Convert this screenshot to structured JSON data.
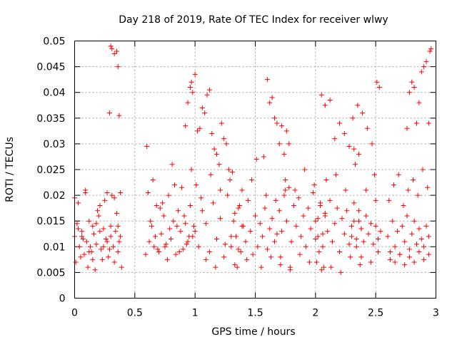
{
  "chart_data": {
    "type": "scatter",
    "title": "Day 218 of 2019, Rate Of TEC Index for receiver wlwy",
    "xlabel": "GPS time / hours",
    "ylabel": "ROTI / TECUs",
    "xlim": [
      0,
      3
    ],
    "ylim": [
      0,
      0.05
    ],
    "grid": true,
    "marker": "+",
    "marker_color": "#ff0000",
    "x_ticks": [
      0,
      0.5,
      1,
      1.5,
      2,
      2.5,
      3
    ],
    "x_tick_labels": [
      "0",
      "0.5",
      "1",
      "1.5",
      "2",
      "2.5",
      "3"
    ],
    "y_ticks": [
      0,
      0.005,
      0.01,
      0.015,
      0.02,
      0.025,
      0.03,
      0.035,
      0.04,
      0.045,
      0.05
    ],
    "y_tick_labels": [
      "0",
      "0.005",
      "0.01",
      "0.015",
      "0.02",
      "0.025",
      "0.03",
      "0.035",
      "0.04",
      "0.045",
      "0.05"
    ],
    "series": [
      {
        "name": "ROTI",
        "x": [
          0.0,
          0.02,
          0.04,
          0.06,
          0.08,
          0.1,
          0.12,
          0.14,
          0.16,
          0.18,
          0.2,
          0.22,
          0.24,
          0.26,
          0.28,
          0.3,
          0.32,
          0.34,
          0.36,
          0.38,
          0.01,
          0.03,
          0.05,
          0.07,
          0.09,
          0.11,
          0.13,
          0.15,
          0.17,
          0.19,
          0.21,
          0.23,
          0.25,
          0.27,
          0.29,
          0.31,
          0.33,
          0.35,
          0.37,
          0.39,
          0.0,
          0.03,
          0.06,
          0.09,
          0.12,
          0.15,
          0.18,
          0.21,
          0.24,
          0.27,
          0.3,
          0.33,
          0.36,
          0.38,
          0.29,
          0.31,
          0.33,
          0.35,
          0.37,
          0.3,
          0.36,
          0.6,
          0.62,
          0.64,
          0.66,
          0.68,
          0.7,
          0.72,
          0.74,
          0.76,
          0.78,
          0.8,
          0.82,
          0.84,
          0.86,
          0.88,
          0.9,
          0.92,
          0.94,
          0.96,
          0.98,
          0.61,
          0.65,
          0.69,
          0.73,
          0.77,
          0.81,
          0.85,
          0.89,
          0.93,
          0.97,
          0.59,
          0.63,
          0.67,
          0.71,
          0.75,
          0.79,
          0.83,
          0.87,
          0.91,
          0.95,
          0.99,
          0.92,
          0.94,
          0.96,
          0.97,
          0.98,
          1.0,
          1.02,
          1.04,
          1.06,
          1.08,
          1.1,
          1.12,
          1.14,
          1.16,
          1.18,
          1.2,
          1.22,
          1.24,
          1.26,
          1.28,
          1.0,
          1.03,
          1.06,
          1.09,
          1.12,
          1.15,
          1.18,
          1.21,
          1.24,
          1.27,
          1.3,
          1.33,
          1.36,
          1.39,
          1.01,
          1.05,
          1.09,
          1.13,
          1.17,
          1.21,
          1.25,
          1.29,
          1.33,
          1.37,
          1.3,
          1.32,
          1.34,
          1.36,
          1.38,
          1.4,
          1.42,
          1.44,
          1.46,
          1.48,
          1.5,
          1.52,
          1.54,
          1.56,
          1.58,
          1.6,
          1.62,
          1.64,
          1.66,
          1.68,
          1.31,
          1.35,
          1.39,
          1.43,
          1.47,
          1.51,
          1.55,
          1.59,
          1.63,
          1.67,
          1.71,
          1.75,
          1.79,
          1.57,
          1.6,
          1.62,
          1.64,
          1.66,
          1.68,
          1.7,
          1.72,
          1.74,
          1.76,
          1.78,
          1.7,
          1.72,
          1.74,
          1.76,
          1.78,
          1.8,
          1.82,
          1.84,
          1.86,
          1.88,
          1.9,
          1.92,
          1.94,
          1.96,
          1.98,
          2.0,
          2.02,
          2.04,
          2.06,
          2.08,
          1.71,
          1.75,
          1.79,
          1.83,
          1.87,
          1.91,
          1.95,
          1.99,
          2.03,
          2.07,
          2.0,
          2.02,
          2.04,
          2.06,
          2.08,
          2.1,
          2.12,
          2.14,
          2.16,
          2.18,
          2.2,
          2.22,
          2.24,
          2.26,
          2.28,
          2.3,
          2.32,
          2.34,
          2.36,
          2.38,
          2.01,
          2.05,
          2.09,
          2.13,
          2.17,
          2.21,
          2.25,
          2.29,
          2.33,
          2.37,
          2.05,
          2.08,
          2.12,
          2.16,
          2.2,
          2.24,
          2.28,
          2.32,
          2.36,
          2.3,
          2.32,
          2.34,
          2.36,
          2.38,
          2.4,
          2.42,
          2.44,
          2.46,
          2.48,
          2.5,
          2.52,
          2.54,
          2.31,
          2.35,
          2.39,
          2.43,
          2.47,
          2.51,
          2.53,
          2.38,
          2.42,
          2.46,
          2.49,
          2.5,
          2.52,
          2.6,
          2.62,
          2.64,
          2.66,
          2.68,
          2.7,
          2.72,
          2.74,
          2.76,
          2.78,
          2.8,
          2.82,
          2.84,
          2.86,
          2.88,
          2.9,
          2.92,
          2.94,
          2.61,
          2.65,
          2.69,
          2.73,
          2.77,
          2.81,
          2.85,
          2.89,
          2.93,
          2.62,
          2.66,
          2.7,
          2.74,
          2.78,
          2.82,
          2.86,
          2.9,
          2.94,
          2.76,
          2.78,
          2.8,
          2.82,
          2.84,
          2.86,
          2.88,
          2.9,
          2.92,
          2.94,
          2.95,
          2.96
        ],
        "y": [
          0.012,
          0.0145,
          0.01,
          0.013,
          0.0085,
          0.011,
          0.015,
          0.009,
          0.0125,
          0.0105,
          0.016,
          0.0095,
          0.0135,
          0.0115,
          0.008,
          0.014,
          0.01,
          0.013,
          0.009,
          0.012,
          0.007,
          0.0185,
          0.008,
          0.0115,
          0.0205,
          0.006,
          0.01,
          0.014,
          0.0055,
          0.017,
          0.013,
          0.0075,
          0.019,
          0.011,
          0.0095,
          0.02,
          0.007,
          0.0165,
          0.011,
          0.006,
          0.0195,
          0.0135,
          0.012,
          0.021,
          0.009,
          0.0075,
          0.0145,
          0.018,
          0.01,
          0.0205,
          0.012,
          0.0195,
          0.014,
          0.0205,
          0.036,
          0.0485,
          0.0475,
          0.048,
          0.0355,
          0.049,
          0.045,
          0.0295,
          0.011,
          0.014,
          0.01,
          0.018,
          0.009,
          0.0125,
          0.016,
          0.0105,
          0.02,
          0.0115,
          0.015,
          0.0085,
          0.017,
          0.013,
          0.0095,
          0.0145,
          0.011,
          0.018,
          0.012,
          0.0205,
          0.023,
          0.0095,
          0.0185,
          0.0075,
          0.026,
          0.014,
          0.0215,
          0.0105,
          0.025,
          0.0085,
          0.015,
          0.012,
          0.0175,
          0.01,
          0.0135,
          0.022,
          0.009,
          0.016,
          0.012,
          0.014,
          0.0335,
          0.038,
          0.041,
          0.042,
          0.04,
          0.0435,
          0.0325,
          0.033,
          0.037,
          0.036,
          0.0395,
          0.0405,
          0.032,
          0.029,
          0.028,
          0.026,
          0.034,
          0.031,
          0.03,
          0.025,
          0.013,
          0.01,
          0.017,
          0.0145,
          0.009,
          0.0185,
          0.0115,
          0.0155,
          0.008,
          0.02,
          0.012,
          0.0165,
          0.0095,
          0.014,
          0.022,
          0.0195,
          0.0075,
          0.024,
          0.006,
          0.021,
          0.0105,
          0.023,
          0.0065,
          0.018,
          0.01,
          0.015,
          0.012,
          0.0175,
          0.009,
          0.014,
          0.011,
          0.019,
          0.013,
          0.0085,
          0.016,
          0.01,
          0.0145,
          0.012,
          0.0175,
          0.0095,
          0.0135,
          0.0155,
          0.011,
          0.0125,
          0.0245,
          0.006,
          0.021,
          0.0075,
          0.023,
          0.027,
          0.006,
          0.02,
          0.008,
          0.019,
          0.0065,
          0.021,
          0.0055,
          0.0275,
          0.0425,
          0.038,
          0.039,
          0.035,
          0.034,
          0.03,
          0.0335,
          0.028,
          0.0325,
          0.03,
          0.017,
          0.013,
          0.02,
          0.015,
          0.0215,
          0.011,
          0.018,
          0.014,
          0.0195,
          0.012,
          0.016,
          0.01,
          0.0175,
          0.0135,
          0.0205,
          0.0115,
          0.0155,
          0.0185,
          0.0125,
          0.0165,
          0.008,
          0.023,
          0.006,
          0.021,
          0.0085,
          0.025,
          0.007,
          0.022,
          0.009,
          0.006,
          0.015,
          0.012,
          0.018,
          0.01,
          0.016,
          0.013,
          0.019,
          0.011,
          0.0145,
          0.0175,
          0.009,
          0.0155,
          0.0125,
          0.017,
          0.0105,
          0.014,
          0.0185,
          0.0115,
          0.015,
          0.0135,
          0.007,
          0.0055,
          0.023,
          0.006,
          0.024,
          0.005,
          0.021,
          0.008,
          0.026,
          0.0065,
          0.0395,
          0.0375,
          0.0385,
          0.031,
          0.034,
          0.032,
          0.0295,
          0.029,
          0.028,
          0.012,
          0.015,
          0.01,
          0.017,
          0.0135,
          0.011,
          0.016,
          0.0125,
          0.0145,
          0.0105,
          0.014,
          0.0115,
          0.013,
          0.035,
          0.0375,
          0.036,
          0.033,
          0.03,
          0.042,
          0.041,
          0.008,
          0.021,
          0.007,
          0.024,
          0.019,
          0.009,
          0.012,
          0.009,
          0.015,
          0.01,
          0.013,
          0.0085,
          0.014,
          0.011,
          0.016,
          0.0095,
          0.0125,
          0.015,
          0.0105,
          0.0135,
          0.0115,
          0.01,
          0.014,
          0.012,
          0.019,
          0.022,
          0.024,
          0.018,
          0.021,
          0.023,
          0.02,
          0.025,
          0.0215,
          0.0075,
          0.007,
          0.0085,
          0.0065,
          0.008,
          0.007,
          0.009,
          0.0075,
          0.0085,
          0.033,
          0.04,
          0.042,
          0.041,
          0.034,
          0.038,
          0.044,
          0.045,
          0.046,
          0.034,
          0.048,
          0.0485
        ]
      }
    ]
  }
}
